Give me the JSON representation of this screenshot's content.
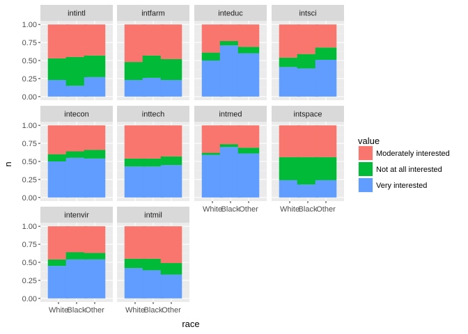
{
  "chart_data": {
    "type": "bar",
    "stacked": true,
    "facet_wrap": true,
    "xlabel": "race",
    "ylabel": "n",
    "ylim": [
      0,
      1
    ],
    "y_ticks": [
      "0.00",
      "0.25",
      "0.50",
      "0.75",
      "1.00"
    ],
    "categories": [
      "White",
      "Black",
      "Other"
    ],
    "legend": {
      "title": "value",
      "placement": "right",
      "entries": [
        {
          "name": "Moderately interested",
          "color": "#F8766D"
        },
        {
          "name": "Not at all interested",
          "color": "#00BA38"
        },
        {
          "name": "Very interested",
          "color": "#619CFF"
        }
      ]
    },
    "stack_order": [
      "Very interested",
      "Not at all interested",
      "Moderately interested"
    ],
    "facets": [
      {
        "name": "intintl",
        "very": [
          0.23,
          0.15,
          0.27
        ],
        "not": [
          0.3,
          0.4,
          0.3
        ]
      },
      {
        "name": "intfarm",
        "very": [
          0.23,
          0.26,
          0.23
        ],
        "not": [
          0.25,
          0.31,
          0.29
        ]
      },
      {
        "name": "inteduc",
        "very": [
          0.5,
          0.71,
          0.6
        ],
        "not": [
          0.11,
          0.06,
          0.09
        ]
      },
      {
        "name": "intsci",
        "very": [
          0.41,
          0.39,
          0.51
        ],
        "not": [
          0.13,
          0.2,
          0.17
        ]
      },
      {
        "name": "intecon",
        "very": [
          0.5,
          0.55,
          0.54
        ],
        "not": [
          0.1,
          0.09,
          0.12
        ]
      },
      {
        "name": "inttech",
        "very": [
          0.43,
          0.43,
          0.45
        ],
        "not": [
          0.11,
          0.11,
          0.12
        ]
      },
      {
        "name": "intmed",
        "very": [
          0.59,
          0.7,
          0.61
        ],
        "not": [
          0.03,
          0.04,
          0.08
        ]
      },
      {
        "name": "intspace",
        "very": [
          0.24,
          0.18,
          0.24
        ],
        "not": [
          0.32,
          0.38,
          0.32
        ]
      },
      {
        "name": "intenvir",
        "very": [
          0.45,
          0.54,
          0.54
        ],
        "not": [
          0.09,
          0.1,
          0.09
        ]
      },
      {
        "name": "intmil",
        "very": [
          0.42,
          0.39,
          0.33
        ],
        "not": [
          0.13,
          0.16,
          0.16
        ]
      }
    ]
  }
}
